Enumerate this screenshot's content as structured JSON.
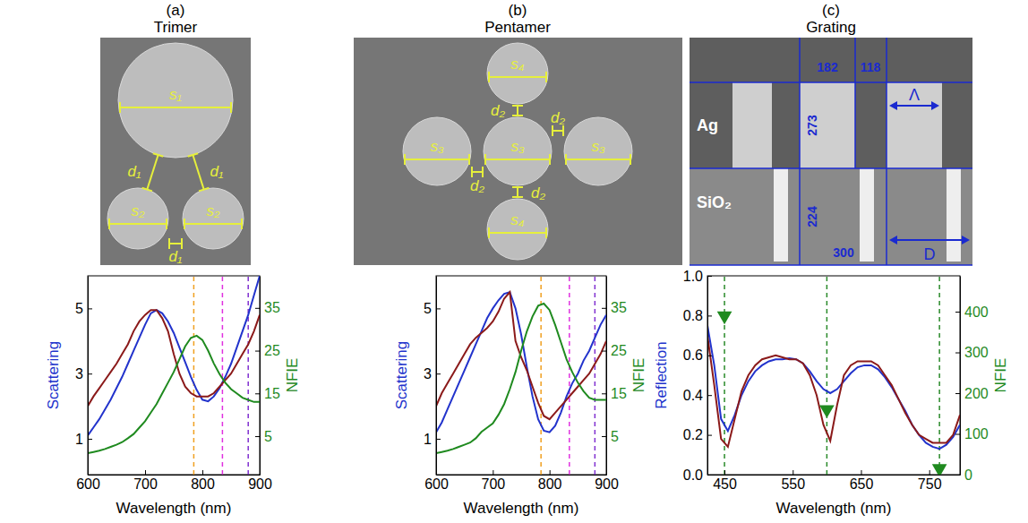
{
  "chart_data": [
    {
      "type": "line",
      "panel": "(a)",
      "title": "Trimer",
      "annotations": [
        "s₁",
        "d₁",
        "d₁",
        "s₂",
        "s₂",
        "d₁"
      ],
      "x_label": "Wavelength (nm)",
      "y_label": "Scattering",
      "y2_label": "NFIE",
      "x": [
        600,
        610,
        620,
        630,
        640,
        650,
        660,
        670,
        680,
        690,
        700,
        710,
        720,
        730,
        740,
        750,
        760,
        770,
        780,
        790,
        800,
        810,
        820,
        830,
        840,
        850,
        860,
        870,
        880,
        890,
        900
      ],
      "xlim": [
        600,
        900
      ],
      "xticks": [
        600,
        700,
        800,
        900
      ],
      "ylim": [
        -0.1,
        6.0
      ],
      "yticks": [
        1,
        3,
        5
      ],
      "y2lim": [
        -4,
        42.5
      ],
      "y2ticks": [
        5,
        15,
        25,
        35
      ],
      "vertical_lines": [
        {
          "x": 785,
          "color": "#f0a020"
        },
        {
          "x": 835,
          "color": "#e030e0"
        },
        {
          "x": 880,
          "color": "#8030d0"
        }
      ],
      "series": [
        {
          "color": "#2233cc",
          "values": [
            1.1,
            1.35,
            1.6,
            1.9,
            2.2,
            2.55,
            2.9,
            3.3,
            3.7,
            4.1,
            4.5,
            4.85,
            4.95,
            4.85,
            4.6,
            4.25,
            3.8,
            3.35,
            2.9,
            2.5,
            2.2,
            2.15,
            2.3,
            2.55,
            2.9,
            3.3,
            3.8,
            4.3,
            4.8,
            5.4,
            6.0
          ]
        },
        {
          "color": "#8b1a1a",
          "values": [
            2.0,
            2.3,
            2.55,
            2.8,
            3.05,
            3.3,
            3.6,
            3.9,
            4.3,
            4.6,
            4.8,
            4.95,
            4.95,
            4.7,
            4.3,
            3.6,
            3.0,
            2.6,
            2.4,
            2.3,
            2.3,
            2.3,
            2.4,
            2.6,
            2.8,
            3.0,
            3.3,
            3.6,
            3.9,
            4.3,
            4.8
          ]
        },
        {
          "color": "#1f8a1f",
          "axis": "y2",
          "values": [
            1,
            1.3,
            1.6,
            2,
            2.5,
            3,
            3.6,
            4.5,
            5.5,
            7,
            8.5,
            10.5,
            12.5,
            15,
            17.5,
            20,
            23,
            26,
            28,
            28.5,
            27.5,
            25,
            22,
            19.5,
            17.5,
            16,
            15,
            14,
            13.5,
            13,
            13
          ]
        }
      ]
    },
    {
      "type": "line",
      "panel": "(b)",
      "title": "Pentamer",
      "annotations": [
        "s₄",
        "d₂",
        "d₂",
        "s₃",
        "s₃",
        "s₃",
        "d₂",
        "d₂",
        "s₄"
      ],
      "x_label": "Wavelength (nm)",
      "y_label": "Scattering",
      "y2_label": "NFIE",
      "x": [
        600,
        610,
        620,
        630,
        640,
        650,
        660,
        670,
        680,
        690,
        700,
        710,
        720,
        730,
        740,
        750,
        760,
        770,
        780,
        790,
        800,
        810,
        820,
        830,
        840,
        850,
        860,
        870,
        880,
        890,
        900
      ],
      "xlim": [
        600,
        900
      ],
      "xticks": [
        600,
        700,
        800,
        900
      ],
      "ylim": [
        -0.1,
        6.0
      ],
      "yticks": [
        1,
        3,
        5
      ],
      "y2lim": [
        -4,
        42.5
      ],
      "y2ticks": [
        5,
        15,
        25,
        35
      ],
      "vertical_lines": [
        {
          "x": 785,
          "color": "#f0a020"
        },
        {
          "x": 835,
          "color": "#e030e0"
        },
        {
          "x": 880,
          "color": "#8030d0"
        }
      ],
      "series": [
        {
          "color": "#2233cc",
          "values": [
            1.2,
            1.5,
            1.9,
            2.3,
            2.7,
            3.1,
            3.5,
            3.9,
            4.3,
            4.7,
            5.0,
            5.25,
            5.45,
            5.5,
            5.0,
            4.2,
            3.2,
            2.3,
            1.6,
            1.25,
            1.2,
            1.4,
            1.8,
            2.3,
            2.7,
            3.0,
            3.4,
            3.7,
            4.1,
            4.5,
            4.8
          ]
        },
        {
          "color": "#8b1a1a",
          "values": [
            2.0,
            2.4,
            2.7,
            3.0,
            3.3,
            3.6,
            3.9,
            4.1,
            4.25,
            4.4,
            4.6,
            4.9,
            5.3,
            5.5,
            4.0,
            3.5,
            3.1,
            2.6,
            2.1,
            1.7,
            1.6,
            1.8,
            2.0,
            2.2,
            2.4,
            2.6,
            2.8,
            3.0,
            3.3,
            3.6,
            4.0
          ]
        },
        {
          "color": "#1f8a1f",
          "axis": "y2",
          "values": [
            1,
            1.3,
            1.6,
            2,
            2.5,
            3,
            3.5,
            4.5,
            6,
            7,
            8,
            10,
            12.5,
            16,
            20,
            25,
            29.5,
            33,
            35.5,
            36,
            34.5,
            31,
            27,
            23,
            20,
            17.5,
            15.5,
            14,
            13.5,
            13.5,
            13.5
          ]
        }
      ]
    },
    {
      "type": "line",
      "panel": "(c)",
      "title": "Grating",
      "annotations": [
        "182",
        "118",
        "Ag",
        "273",
        "SiO₂",
        "224",
        "300",
        "Λ",
        "D"
      ],
      "x_label": "Wavelength (nm)",
      "y_label": "Reflection",
      "y2_label": "NFIE",
      "x": [
        425,
        435,
        445,
        455,
        465,
        475,
        485,
        495,
        505,
        515,
        525,
        535,
        545,
        555,
        565,
        575,
        585,
        595,
        605,
        615,
        625,
        635,
        645,
        655,
        665,
        675,
        685,
        695,
        705,
        715,
        725,
        735,
        745,
        755,
        765,
        775,
        785,
        795
      ],
      "xlim": [
        425,
        795
      ],
      "xticks": [
        450,
        550,
        650,
        750
      ],
      "ylim": [
        0,
        1
      ],
      "yticks": [
        {
          "value": 0,
          "label": "0.0"
        },
        0.2,
        0.4,
        0.6,
        0.8,
        {
          "value": 1,
          "label": "1.0"
        }
      ],
      "y2lim": [
        0,
        488
      ],
      "y2ticks": [
        0,
        100,
        200,
        300,
        400
      ],
      "vertical_lines": [
        {
          "x": 450,
          "color": "#2a8a2a"
        },
        {
          "x": 600,
          "color": "#2a8a2a"
        },
        {
          "x": 765,
          "color": "#2a8a2a"
        }
      ],
      "series": [
        {
          "color": "#2233cc",
          "values": [
            0.75,
            0.55,
            0.28,
            0.22,
            0.3,
            0.4,
            0.47,
            0.52,
            0.55,
            0.57,
            0.58,
            0.58,
            0.585,
            0.58,
            0.56,
            0.52,
            0.47,
            0.43,
            0.41,
            0.43,
            0.47,
            0.51,
            0.54,
            0.55,
            0.55,
            0.53,
            0.49,
            0.44,
            0.38,
            0.32,
            0.25,
            0.2,
            0.16,
            0.14,
            0.13,
            0.15,
            0.19,
            0.25
          ]
        },
        {
          "color": "#8b1a1a",
          "values": [
            0.7,
            0.45,
            0.18,
            0.14,
            0.28,
            0.42,
            0.5,
            0.55,
            0.58,
            0.59,
            0.6,
            0.59,
            0.58,
            0.58,
            0.56,
            0.5,
            0.4,
            0.25,
            0.17,
            0.35,
            0.5,
            0.55,
            0.57,
            0.57,
            0.57,
            0.55,
            0.5,
            0.45,
            0.38,
            0.31,
            0.25,
            0.2,
            0.18,
            0.16,
            0.16,
            0.16,
            0.2,
            0.3
          ]
        },
        {
          "color": "#1f8a1f",
          "axis": "y2",
          "type": "scatter",
          "marker": "triangle-down",
          "x": [
            450,
            600,
            765
          ],
          "values": [
            390,
            160,
            15
          ]
        }
      ]
    }
  ]
}
